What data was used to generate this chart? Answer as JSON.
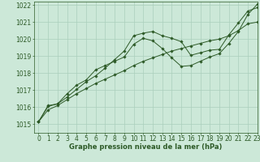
{
  "title": "Graphe pression niveau de la mer (hPa)",
  "bg_color": "#cce8d8",
  "grid_color": "#aacfbc",
  "line_color": "#2d5a27",
  "xlim": [
    -0.5,
    23
  ],
  "ylim": [
    1014.5,
    1022.2
  ],
  "yticks": [
    1015,
    1016,
    1017,
    1018,
    1019,
    1020,
    1021,
    1022
  ],
  "xticks": [
    0,
    1,
    2,
    3,
    4,
    5,
    6,
    7,
    8,
    9,
    10,
    11,
    12,
    13,
    14,
    15,
    16,
    17,
    18,
    19,
    20,
    21,
    22,
    23
  ],
  "line1_x": [
    0,
    1,
    2,
    3,
    4,
    5,
    6,
    7,
    8,
    9,
    10,
    11,
    12,
    13,
    14,
    15,
    16,
    17,
    18,
    19,
    20,
    21,
    22,
    23
  ],
  "line1_y": [
    1015.15,
    1016.1,
    1016.2,
    1016.6,
    1017.05,
    1017.5,
    1017.85,
    1018.3,
    1018.8,
    1019.3,
    1020.2,
    1020.35,
    1020.45,
    1020.2,
    1020.05,
    1019.85,
    1019.05,
    1019.2,
    1019.35,
    1019.4,
    1020.25,
    1020.95,
    1021.65,
    1021.85
  ],
  "line1_marker_x": [
    0,
    1,
    2,
    3,
    4,
    5,
    6,
    7,
    8,
    9,
    10,
    11,
    12,
    13,
    14,
    15,
    16,
    17,
    18,
    19,
    20,
    21,
    22,
    23
  ],
  "line1_marker_y": [
    1015.15,
    1016.1,
    1016.2,
    1016.6,
    1017.05,
    1017.5,
    1017.85,
    1018.3,
    1018.8,
    1019.3,
    1020.2,
    1020.35,
    1020.45,
    1020.2,
    1020.05,
    1019.85,
    1019.05,
    1019.2,
    1019.35,
    1019.4,
    1020.25,
    1020.95,
    1021.65,
    1021.85
  ],
  "line2_x": [
    0,
    1,
    2,
    3,
    4,
    5,
    6,
    7,
    8,
    9,
    10,
    11,
    12,
    13,
    14,
    15,
    16,
    17,
    18,
    19,
    20,
    21,
    22,
    23
  ],
  "line2_y": [
    1015.15,
    1016.05,
    1016.2,
    1016.8,
    1017.3,
    1017.6,
    1018.2,
    1018.45,
    1018.7,
    1018.95,
    1019.7,
    1020.05,
    1019.9,
    1019.45,
    1018.9,
    1018.4,
    1018.45,
    1018.7,
    1018.95,
    1019.15,
    1019.75,
    1020.45,
    1021.45,
    1022.05
  ],
  "line2_marker_x": [
    0,
    1,
    2,
    3,
    4,
    5,
    6,
    7,
    9,
    10,
    11,
    12,
    13,
    14,
    15,
    16,
    17,
    18,
    19,
    20,
    21,
    22,
    23
  ],
  "line2_marker_y": [
    1015.15,
    1016.05,
    1016.2,
    1016.8,
    1017.3,
    1017.6,
    1018.2,
    1018.45,
    1018.95,
    1019.7,
    1020.05,
    1019.9,
    1019.45,
    1018.9,
    1018.4,
    1018.45,
    1018.7,
    1018.95,
    1019.15,
    1019.75,
    1020.45,
    1021.45,
    1022.05
  ],
  "line3_x": [
    0,
    1,
    2,
    3,
    4,
    5,
    6,
    7,
    8,
    9,
    10,
    11,
    12,
    13,
    14,
    15,
    16,
    17,
    18,
    19,
    20,
    21,
    22,
    23
  ],
  "line3_y": [
    1015.15,
    1015.85,
    1016.1,
    1016.45,
    1016.8,
    1017.1,
    1017.4,
    1017.65,
    1017.9,
    1018.15,
    1018.45,
    1018.7,
    1018.9,
    1019.1,
    1019.3,
    1019.45,
    1019.6,
    1019.75,
    1019.9,
    1020.0,
    1020.2,
    1020.5,
    1020.9,
    1021.0
  ],
  "line3_marker_x": [
    0,
    1,
    2,
    3,
    4,
    5,
    6,
    7,
    8,
    9,
    10,
    11,
    12,
    13,
    14,
    15,
    16,
    17,
    18,
    19,
    20,
    21,
    22,
    23
  ],
  "line3_marker_y": [
    1015.15,
    1015.85,
    1016.1,
    1016.45,
    1016.8,
    1017.1,
    1017.4,
    1017.65,
    1017.9,
    1018.15,
    1018.45,
    1018.7,
    1018.9,
    1019.1,
    1019.3,
    1019.45,
    1019.6,
    1019.75,
    1019.9,
    1020.0,
    1020.2,
    1020.5,
    1020.9,
    1021.0
  ],
  "tick_fontsize": 5.5,
  "label_fontsize": 6.0
}
